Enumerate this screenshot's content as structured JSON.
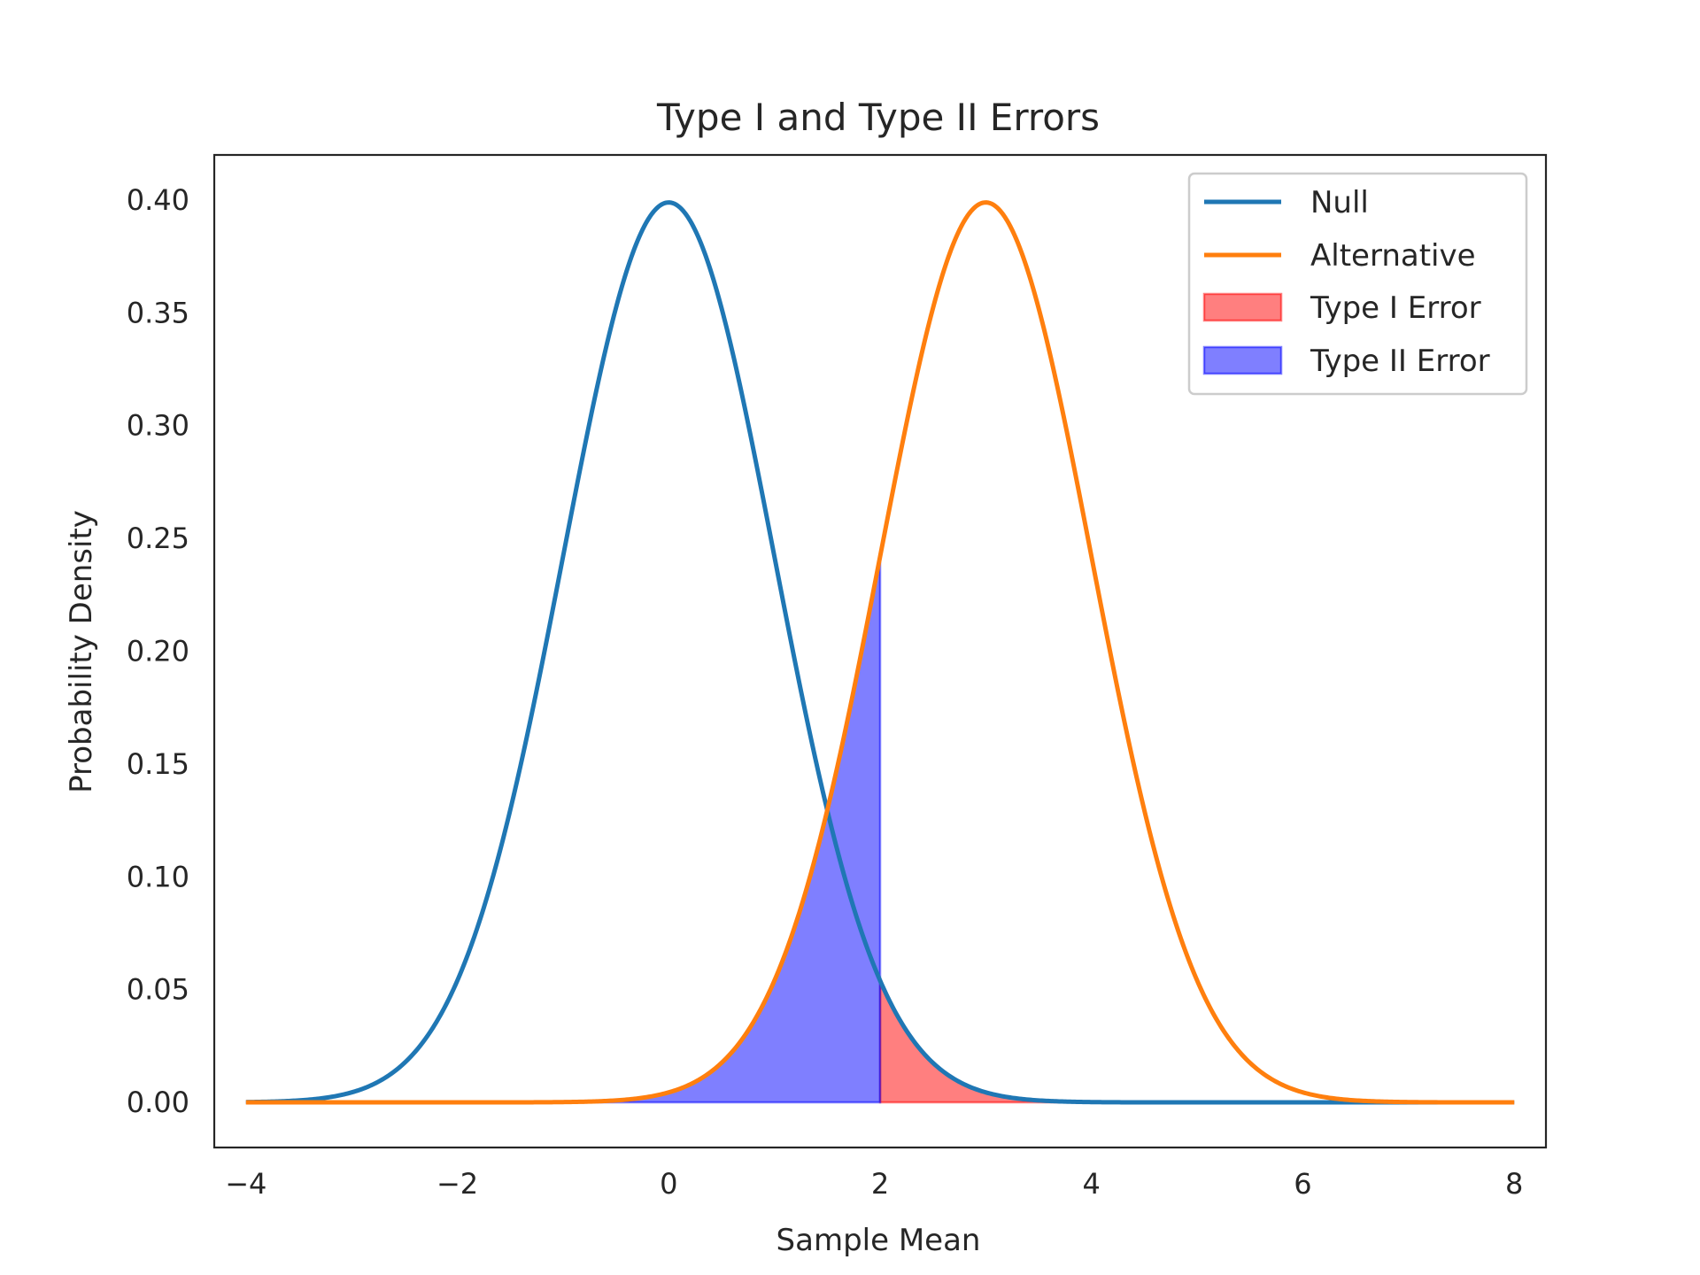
{
  "chart_data": {
    "type": "line",
    "title": "Type I and Type II Errors",
    "xlabel": "Sample Mean",
    "ylabel": "Probability Density",
    "xlim": [
      -4.3,
      8.3
    ],
    "ylim": [
      -0.02,
      0.42
    ],
    "x_ticks": [
      -4,
      -2,
      0,
      2,
      4,
      6,
      8
    ],
    "x_tick_labels": [
      "−4",
      "−2",
      "0",
      "2",
      "4",
      "6",
      "8"
    ],
    "y_ticks": [
      0.0,
      0.05,
      0.1,
      0.15,
      0.2,
      0.25,
      0.3,
      0.35,
      0.4
    ],
    "y_tick_labels": [
      "0.00",
      "0.05",
      "0.10",
      "0.15",
      "0.20",
      "0.25",
      "0.30",
      "0.35",
      "0.40"
    ],
    "x_range": [
      -4,
      8
    ],
    "critical_value": 2.0,
    "grid": false,
    "legend_position": "top-right",
    "series": [
      {
        "name": "Null",
        "kind": "normal-pdf",
        "mean": 0,
        "sd": 1,
        "color": "#1f77b4"
      },
      {
        "name": "Alternative",
        "kind": "normal-pdf",
        "mean": 3,
        "sd": 1,
        "color": "#ff7f0e"
      }
    ],
    "areas": [
      {
        "name": "Type I Error",
        "under": "Null",
        "from": 2.0,
        "to": 8,
        "color": "#ff0000",
        "opacity": 0.5
      },
      {
        "name": "Type II Error",
        "under": "Alternative",
        "from": -4,
        "to": 2.0,
        "color": "#0000ff",
        "opacity": 0.5
      }
    ]
  }
}
